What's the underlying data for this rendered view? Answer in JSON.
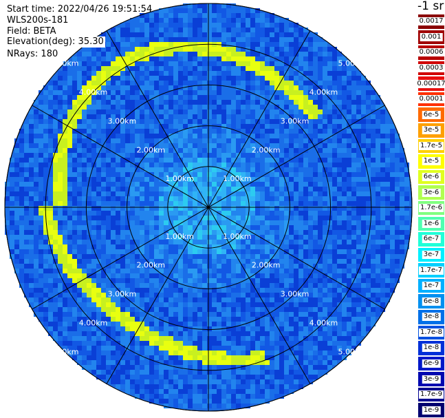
{
  "header": {
    "start_time": "Start time: 2022/04/26 19:51:54",
    "instrument": "WLS200s-181",
    "field": "Field: BETA",
    "elevation": "Elevation(deg): 35.30",
    "nrays": "NRays: 180"
  },
  "plot": {
    "ring_labels": [
      "1.00km",
      "2.00km",
      "3.00km",
      "4.00km",
      "5.00km"
    ],
    "background_color": "#1e6ae0",
    "ring_color": "#000000"
  },
  "colorbar": {
    "unit_label": "-1 sr",
    "levels": [
      {
        "label": "0.0017",
        "color": "#8b0000"
      },
      {
        "label": "0.001",
        "color": "#a00000"
      },
      {
        "label": "0.0006",
        "color": "#b80000"
      },
      {
        "label": "0.0003",
        "color": "#d00000"
      },
      {
        "label": "0.00017",
        "color": "#e81010"
      },
      {
        "label": "0.0001",
        "color": "#ff3000"
      },
      {
        "label": "6e-5",
        "color": "#ff6a00"
      },
      {
        "label": "3e-5",
        "color": "#ffa000"
      },
      {
        "label": "1.7e-5",
        "color": "#ffd000"
      },
      {
        "label": "1e-5",
        "color": "#ffff00"
      },
      {
        "label": "6e-6",
        "color": "#e0ff20"
      },
      {
        "label": "3e-6",
        "color": "#b0ff50"
      },
      {
        "label": "1.7e-6",
        "color": "#80ff80"
      },
      {
        "label": "1e-6",
        "color": "#50ffb0"
      },
      {
        "label": "6e-7",
        "color": "#20ffd8"
      },
      {
        "label": "3e-7",
        "color": "#00f0ff"
      },
      {
        "label": "1.7e-7",
        "color": "#00d0ff"
      },
      {
        "label": "1e-7",
        "color": "#00b0ff"
      },
      {
        "label": "6e-8",
        "color": "#0090f0"
      },
      {
        "label": "3e-8",
        "color": "#0070e8"
      },
      {
        "label": "1.7e-8",
        "color": "#0050e0"
      },
      {
        "label": "1e-8",
        "color": "#0030d8"
      },
      {
        "label": "6e-9",
        "color": "#0018c8"
      },
      {
        "label": "3e-9",
        "color": "#0008b0"
      },
      {
        "label": "1.7e-9",
        "color": "#000090"
      },
      {
        "label": "1e-9",
        "color": "#000070"
      }
    ]
  }
}
